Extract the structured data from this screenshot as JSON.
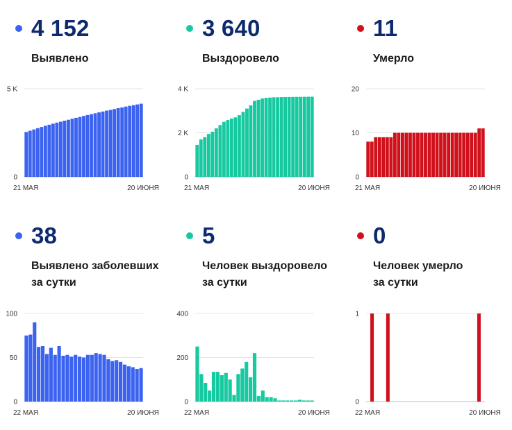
{
  "panels": [
    {
      "value": "4 152",
      "label_lines": [
        "Выявлено"
      ],
      "color": "#3b63f0",
      "chart_data": {
        "type": "bar",
        "ylim": [
          0,
          5000
        ],
        "yticks": [
          {
            "v": 0,
            "label": "0"
          },
          {
            "v": 5000,
            "label": "5 K"
          }
        ],
        "xlabels": [
          "21 МАЯ",
          "20 ИЮНЯ"
        ],
        "values": [
          2550,
          2620,
          2690,
          2760,
          2830,
          2900,
          2960,
          3020,
          3080,
          3130,
          3190,
          3240,
          3300,
          3350,
          3400,
          3460,
          3510,
          3560,
          3610,
          3660,
          3710,
          3760,
          3800,
          3850,
          3900,
          3940,
          3990,
          4030,
          4070,
          4110,
          4152
        ]
      }
    },
    {
      "value": "3 640",
      "label_lines": [
        "Выздоровело"
      ],
      "color": "#17c9a0",
      "chart_data": {
        "type": "bar",
        "ylim": [
          0,
          4000
        ],
        "yticks": [
          {
            "v": 0,
            "label": "0"
          },
          {
            "v": 2000,
            "label": "2 K"
          },
          {
            "v": 4000,
            "label": "4 K"
          }
        ],
        "xlabels": [
          "21 МАЯ",
          "20 ИЮНЯ"
        ],
        "values": [
          1450,
          1700,
          1800,
          1950,
          2050,
          2200,
          2350,
          2500,
          2580,
          2650,
          2700,
          2800,
          2950,
          3100,
          3250,
          3450,
          3500,
          3560,
          3590,
          3600,
          3610,
          3615,
          3620,
          3622,
          3625,
          3628,
          3630,
          3632,
          3635,
          3638,
          3640
        ]
      }
    },
    {
      "value": "11",
      "label_lines": [
        "Умерло"
      ],
      "color": "#d0101b",
      "chart_data": {
        "type": "bar",
        "ylim": [
          0,
          20
        ],
        "yticks": [
          {
            "v": 0,
            "label": "0"
          },
          {
            "v": 10,
            "label": "10"
          },
          {
            "v": 20,
            "label": "20"
          }
        ],
        "xlabels": [
          "21 МАЯ",
          "20 ИЮНЯ"
        ],
        "values": [
          8,
          8,
          9,
          9,
          9,
          9,
          9,
          10,
          10,
          10,
          10,
          10,
          10,
          10,
          10,
          10,
          10,
          10,
          10,
          10,
          10,
          10,
          10,
          10,
          10,
          10,
          10,
          10,
          10,
          11,
          11
        ]
      }
    },
    {
      "value": "38",
      "label_lines": [
        "Выявлено заболевших",
        "за сутки"
      ],
      "color": "#3b63f0",
      "chart_data": {
        "type": "bar",
        "ylim": [
          0,
          100
        ],
        "yticks": [
          {
            "v": 0,
            "label": "0"
          },
          {
            "v": 50,
            "label": "50"
          },
          {
            "v": 100,
            "label": "100"
          }
        ],
        "xlabels": [
          "22 МАЯ",
          "20 ИЮНЯ"
        ],
        "values": [
          75,
          76,
          90,
          62,
          63,
          54,
          61,
          53,
          63,
          52,
          53,
          51,
          53,
          51,
          50,
          53,
          53,
          55,
          54,
          53,
          48,
          46,
          47,
          45,
          42,
          40,
          39,
          37,
          38
        ]
      }
    },
    {
      "value": "5",
      "label_lines": [
        "Человек выздоровело",
        "за сутки"
      ],
      "color": "#17c9a0",
      "chart_data": {
        "type": "bar",
        "ylim": [
          0,
          400
        ],
        "yticks": [
          {
            "v": 0,
            "label": "0"
          },
          {
            "v": 200,
            "label": "200"
          },
          {
            "v": 400,
            "label": "400"
          }
        ],
        "xlabels": [
          "22 МАЯ",
          "20 ИЮНЯ"
        ],
        "values": [
          250,
          125,
          85,
          50,
          135,
          135,
          120,
          130,
          100,
          30,
          125,
          150,
          180,
          110,
          220,
          25,
          50,
          20,
          20,
          15,
          5,
          5,
          5,
          5,
          5,
          8,
          5,
          5,
          5
        ]
      }
    },
    {
      "value": "0",
      "label_lines": [
        "Человек умерло",
        "за сутки"
      ],
      "color": "#d0101b",
      "chart_data": {
        "type": "bar",
        "ylim": [
          0,
          1
        ],
        "yticks": [
          {
            "v": 0,
            "label": "0"
          },
          {
            "v": 1,
            "label": "1"
          }
        ],
        "xlabels": [
          "22 МАЯ",
          "20 ИЮНЯ"
        ],
        "values": [
          0,
          1,
          0,
          0,
          0,
          1,
          0,
          0,
          0,
          0,
          0,
          0,
          0,
          0,
          0,
          0,
          0,
          0,
          0,
          0,
          0,
          0,
          0,
          0,
          0,
          0,
          0,
          0,
          1,
          0
        ]
      }
    }
  ]
}
